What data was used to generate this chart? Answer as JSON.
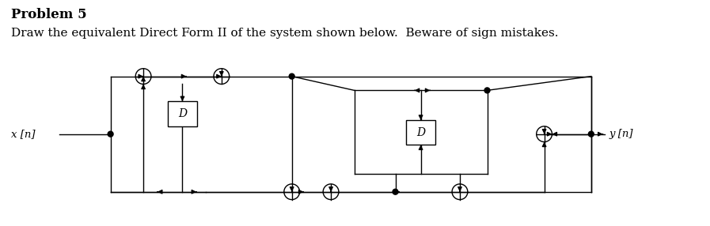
{
  "title": "Problem 5",
  "subtitle": "Draw the equivalent Direct Form II of the system shown below.  Beware of sign mistakes.",
  "background": "#ffffff",
  "title_fontsize": 12,
  "subtitle_fontsize": 11,
  "label_xn": "x [n]",
  "label_yn": "y [n]",
  "lw": 1.0,
  "sum_r": 0.1,
  "dot_r": 0.035,
  "arrow_ms": 8
}
